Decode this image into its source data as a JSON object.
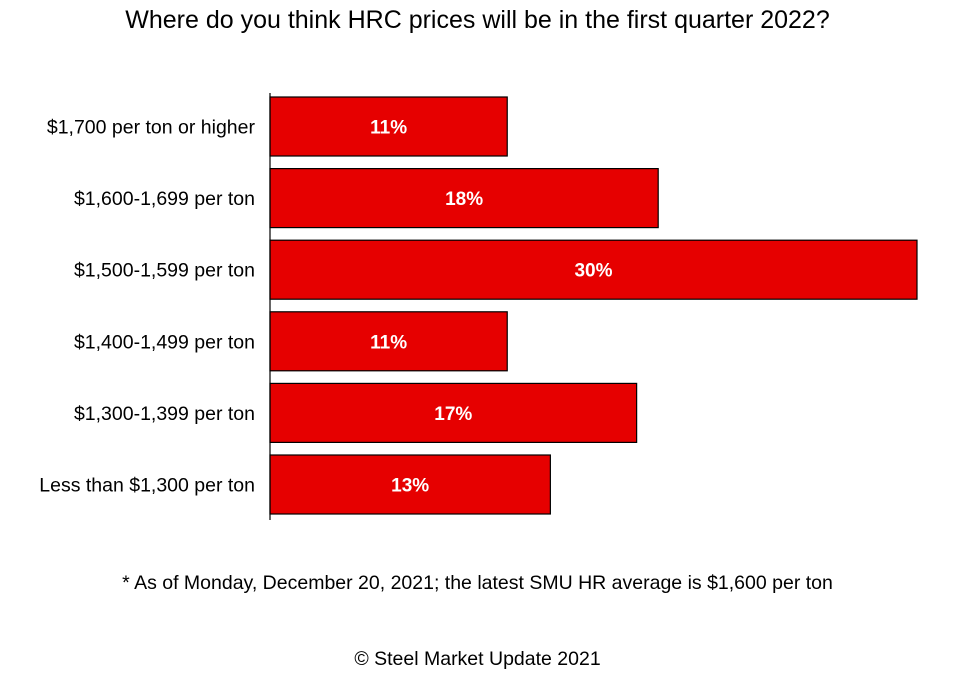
{
  "chart_data": {
    "type": "bar",
    "orientation": "horizontal",
    "title": "Where do you think HRC prices will be in the first quarter 2022?",
    "categories": [
      "$1,700 per ton or higher",
      "$1,600-1,699 per ton",
      "$1,500-1,599 per ton",
      "$1,400-1,499 per ton",
      "$1,300-1,399 per ton",
      "Less than $1,300 per ton"
    ],
    "values": [
      11,
      18,
      30,
      11,
      17,
      13
    ],
    "data_labels": [
      "11%",
      "18%",
      "30%",
      "11%",
      "17%",
      "13%"
    ],
    "unit": "%",
    "xlim": [
      0,
      30
    ],
    "grid": false,
    "legend": "none",
    "bar_color": "#e60000",
    "label_color": "#ffffff"
  },
  "footnote": "* As of Monday, December 20, 2021; the latest SMU HR average is $1,600 per ton",
  "copyright": "© Steel Market Update 2021"
}
